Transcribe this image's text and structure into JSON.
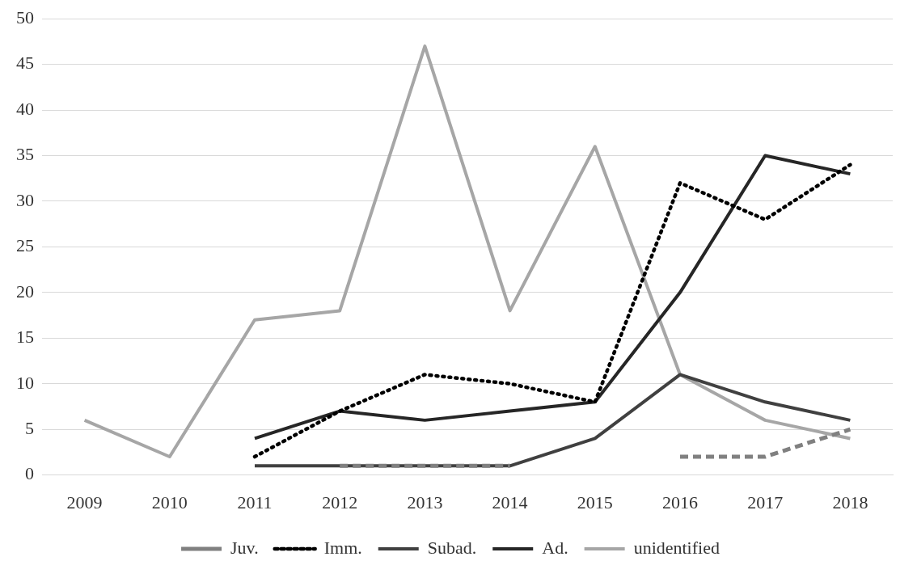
{
  "chart_data": {
    "type": "line",
    "categories": [
      "2009",
      "2010",
      "2011",
      "2012",
      "2013",
      "2014",
      "2015",
      "2016",
      "2017",
      "2018"
    ],
    "series": [
      {
        "name": "Juv.",
        "color": "#808080",
        "line_style": "dashed",
        "values": [
          null,
          null,
          null,
          1,
          1,
          1,
          null,
          2,
          2,
          5
        ]
      },
      {
        "name": "Imm.",
        "color": "#000000",
        "line_style": "dotted",
        "values": [
          null,
          null,
          2,
          7,
          11,
          10,
          8,
          32,
          28,
          34
        ]
      },
      {
        "name": "Subad.",
        "color": "#404040",
        "line_style": "solid",
        "values": [
          null,
          null,
          1,
          1,
          1,
          1,
          4,
          11,
          8,
          6
        ]
      },
      {
        "name": "Ad.",
        "color": "#262626",
        "line_style": "solid",
        "values": [
          null,
          null,
          4,
          7,
          6,
          7,
          8,
          20,
          35,
          33
        ]
      },
      {
        "name": "unidentified",
        "color": "#a6a6a6",
        "line_style": "solid",
        "values": [
          6,
          2,
          17,
          18,
          47,
          18,
          36,
          11,
          6,
          4
        ]
      }
    ],
    "ylim": [
      0,
      50
    ],
    "yticks": [
      0,
      5,
      10,
      15,
      20,
      25,
      30,
      35,
      40,
      45,
      50
    ],
    "grid": "y",
    "legend": "bottom",
    "marker": "none"
  }
}
